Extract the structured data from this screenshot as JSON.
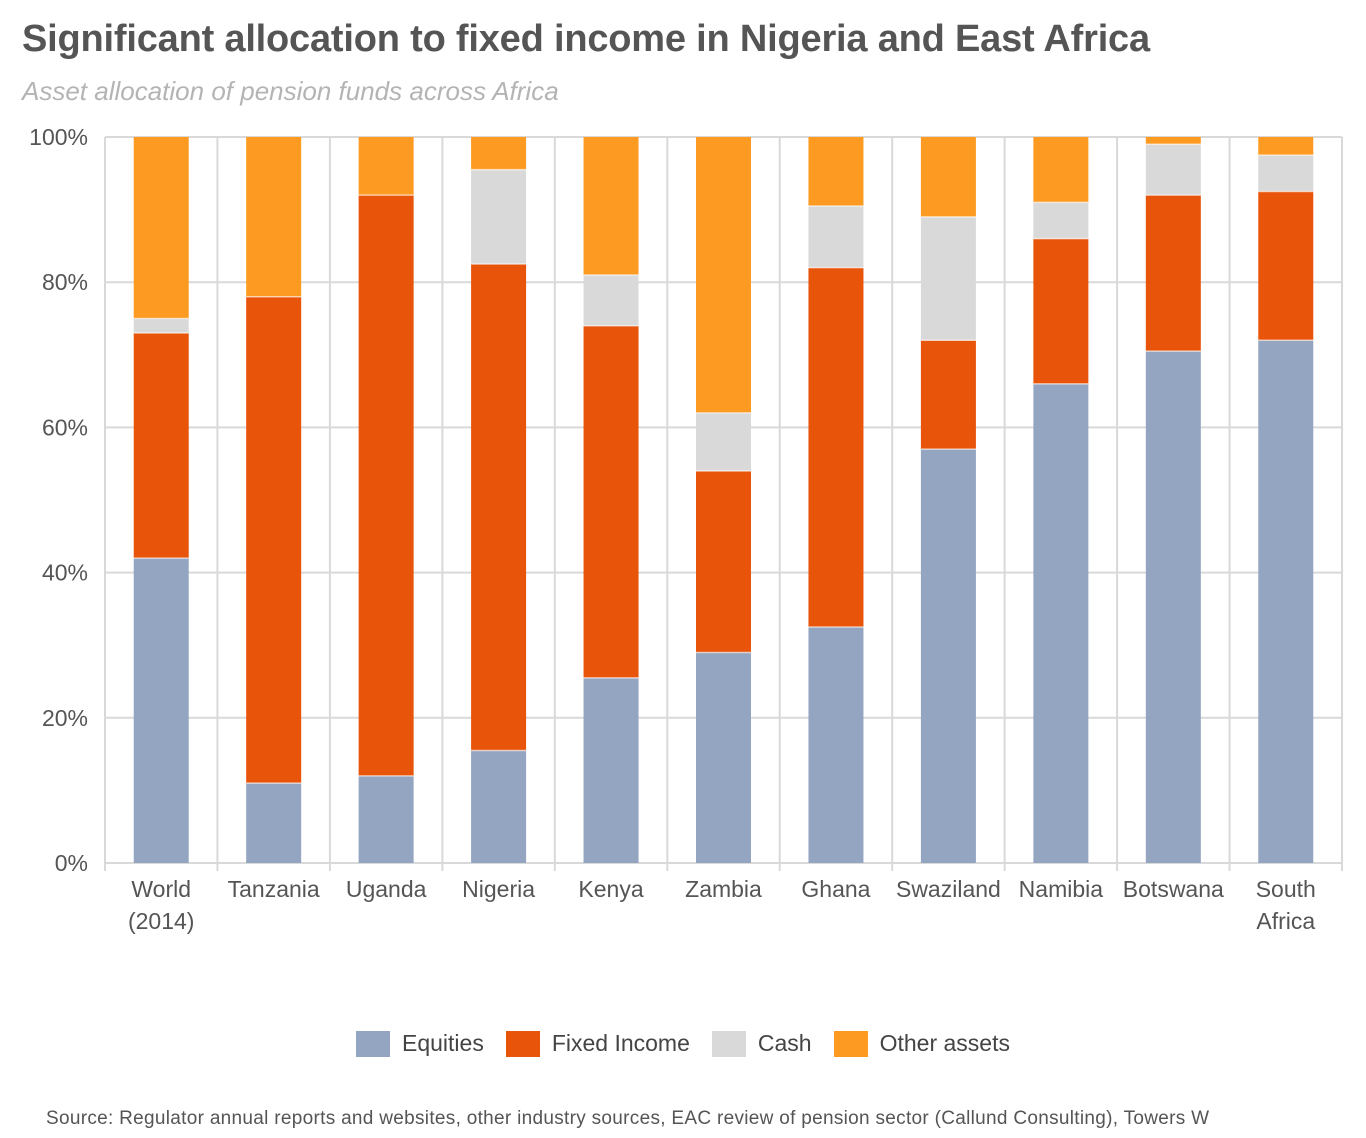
{
  "title": "Significant allocation to fixed income in Nigeria and East Africa",
  "subtitle": "Asset allocation of pension funds across Africa",
  "source": "Source: Regulator annual reports and websites, other industry sources, EAC review of pension sector (Callund Consulting), Towers W",
  "colors": {
    "equities": "#94a5c1",
    "fixed_income": "#e8540a",
    "cash": "#d9d9d9",
    "other_assets": "#fd9a22",
    "grid": "#d9d9d9",
    "axis_text": "#555555"
  },
  "chart_data": {
    "type": "bar",
    "stacked": true,
    "title": "Significant allocation to fixed income in Nigeria and East Africa",
    "subtitle": "Asset allocation of pension funds across Africa",
    "categories": [
      [
        "World",
        "(2014)"
      ],
      [
        "Tanzania"
      ],
      [
        "Uganda"
      ],
      [
        "Nigeria"
      ],
      [
        "Kenya"
      ],
      [
        "Zambia"
      ],
      [
        "Ghana"
      ],
      [
        "Swaziland"
      ],
      [
        "Namibia"
      ],
      [
        "Botswana"
      ],
      [
        "South",
        "Africa"
      ]
    ],
    "series": [
      {
        "name": "Equities",
        "values": [
          42,
          11,
          12,
          15.5,
          25.5,
          29,
          32.5,
          57,
          66,
          70.5,
          72
        ]
      },
      {
        "name": "Fixed Income",
        "values": [
          31,
          67,
          80,
          67,
          48.5,
          25,
          49.5,
          15,
          20,
          21.5,
          20.5
        ]
      },
      {
        "name": "Cash",
        "values": [
          2,
          0,
          0,
          13,
          7,
          8,
          8.5,
          17,
          5,
          7,
          5
        ]
      },
      {
        "name": "Other assets",
        "values": [
          25,
          22,
          8,
          4.5,
          19,
          38,
          9.5,
          11,
          9,
          1,
          2.5
        ]
      }
    ],
    "ylim": [
      0,
      100
    ],
    "yticks": [
      "0%",
      "20%",
      "40%",
      "60%",
      "80%",
      "100%"
    ],
    "grid": true,
    "legend": "bottom",
    "legend_labels": [
      "Equities",
      "Fixed Income",
      "Cash",
      "Other assets"
    ]
  }
}
